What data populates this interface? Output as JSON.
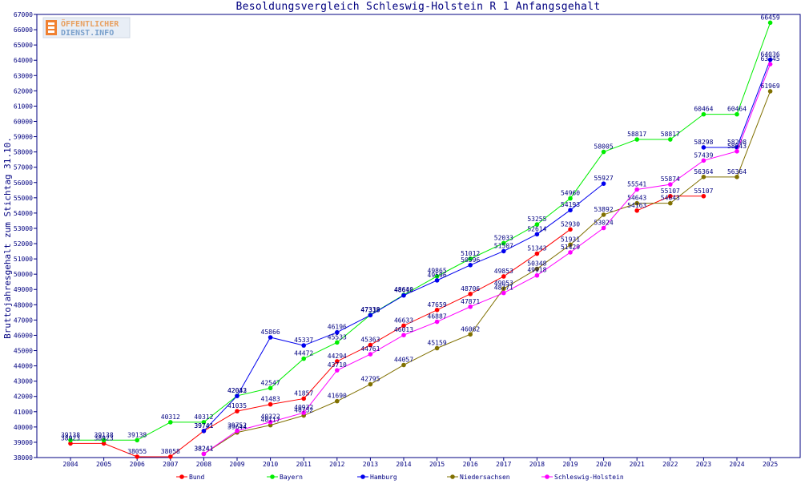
{
  "logo": {
    "line1": "ÖFFENTLICHER",
    "line2": "DIENST.INFO"
  },
  "chart_data": {
    "type": "line",
    "title": "Besoldungsvergleich Schleswig-Holstein R 1 Anfangsgehalt",
    "xlabel": "",
    "ylabel": "Bruttojahresgehalt zum Stichtag 31.10.",
    "ylim": [
      38000,
      67000
    ],
    "grid": false,
    "legend_position": "bottom",
    "categories": [
      "2004",
      "2005",
      "2006",
      "2007",
      "2008",
      "2009",
      "2010",
      "2011",
      "2012",
      "2013",
      "2014",
      "2015",
      "2016",
      "2017",
      "2018",
      "2019",
      "2020",
      "2021",
      "2022",
      "2023",
      "2024",
      "2025"
    ],
    "series": [
      {
        "name": "Bund",
        "color": "#ff0000",
        "values": [
          38923,
          38923,
          38055,
          38058,
          39741,
          41035,
          41483,
          41857,
          44294,
          45363,
          46633,
          47659,
          48706,
          49853,
          51343,
          52930,
          null,
          54163,
          55107,
          55107,
          null,
          null
        ]
      },
      {
        "name": "Bayern",
        "color": "#00ee00",
        "values": [
          39138,
          39138,
          39138,
          40312,
          40312,
          42043,
          42547,
          44472,
          45533,
          47338,
          48640,
          49865,
          51012,
          52033,
          53255,
          54960,
          58005,
          58817,
          58817,
          60464,
          60464,
          66459
        ]
      },
      {
        "name": "Hamburg",
        "color": "#0000ee",
        "values": [
          null,
          null,
          null,
          null,
          39741,
          42032,
          45866,
          45337,
          46196,
          47318,
          48610,
          49596,
          50596,
          51507,
          52614,
          54193,
          55927,
          null,
          null,
          58298,
          58298,
          64036
        ]
      },
      {
        "name": "Niedersachsen",
        "color": "#807000",
        "values": [
          null,
          null,
          null,
          null,
          38241,
          39644,
          40117,
          40752,
          41690,
          42795,
          44057,
          45159,
          46062,
          49053,
          50348,
          51931,
          53892,
          54643,
          54643,
          56364,
          56364,
          61969
        ]
      },
      {
        "name": "Schleswig-Holstein",
        "color": "#ff00ff",
        "values": [
          null,
          null,
          null,
          null,
          38241,
          39752,
          40322,
          40932,
          43710,
          44761,
          46013,
          46887,
          47871,
          48771,
          49918,
          51429,
          53024,
          55541,
          55874,
          57439,
          58043,
          63745
        ]
      }
    ],
    "data_labels": [
      {
        "series": 0,
        "text": [
          "38923",
          "38923",
          "38055",
          "38058",
          "39741",
          "41035",
          "41483",
          "41857",
          "44294",
          "45363",
          "46633",
          "47659",
          "48706",
          "49853",
          "51343",
          "52930",
          null,
          "54163",
          "55107",
          "55107",
          null,
          null
        ]
      },
      {
        "series": 1,
        "text": [
          "39138",
          "39138",
          "39138",
          "40312",
          "40312",
          "42043",
          "42547",
          "44472",
          "45533",
          "47338",
          "48640",
          "49865",
          "51012",
          "52033",
          "53255",
          "54960",
          "58005",
          "58817",
          "58817",
          "60464",
          "60464",
          "66459"
        ]
      },
      {
        "series": 2,
        "text": [
          null,
          null,
          null,
          null,
          "39741",
          "42032",
          "45866",
          "45337",
          "46196",
          "47318",
          "48610",
          "49596",
          "50596",
          "51507",
          "52614",
          "54193",
          "55927",
          null,
          null,
          "58298",
          "58298",
          "64036"
        ]
      },
      {
        "series": 3,
        "text": [
          null,
          null,
          null,
          null,
          "38241",
          "39644",
          "40117",
          "40752",
          "41690",
          "42795",
          "44057",
          "45159",
          "46062",
          "49053",
          "50348",
          "51931",
          "53892",
          "54643",
          "54643",
          "56364",
          "56364",
          "61969"
        ]
      },
      {
        "series": 4,
        "text": [
          null,
          null,
          null,
          null,
          "38241",
          "39752",
          "40322",
          "40932",
          "43710",
          "44761",
          "46013",
          "46887",
          "47871",
          "48771",
          "49918",
          "51429",
          "53024",
          "55541",
          "55874",
          "57439",
          "58043",
          "63745"
        ]
      }
    ],
    "yticks": [
      38000,
      39000,
      40000,
      41000,
      42000,
      43000,
      44000,
      45000,
      46000,
      47000,
      48000,
      49000,
      50000,
      51000,
      52000,
      53000,
      54000,
      55000,
      56000,
      57000,
      58000,
      59000,
      60000,
      61000,
      62000,
      63000,
      64000,
      65000,
      66000,
      67000
    ]
  }
}
